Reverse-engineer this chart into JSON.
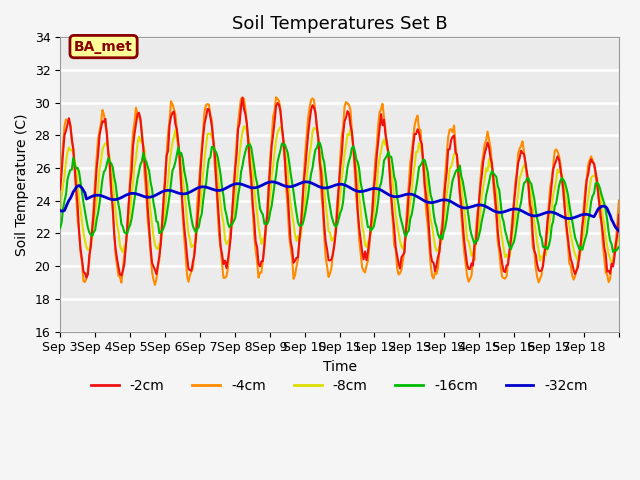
{
  "title": "Soil Temperatures Set B",
  "xlabel": "Time",
  "ylabel": "Soil Temperature (C)",
  "ylim": [
    16,
    34
  ],
  "xlim": [
    0,
    16
  ],
  "xtick_positions": [
    0,
    1,
    2,
    3,
    4,
    5,
    6,
    7,
    8,
    9,
    10,
    11,
    12,
    13,
    14,
    15,
    16
  ],
  "xtick_labels": [
    "Sep 3",
    "Sep 4",
    "Sep 5",
    "Sep 6",
    "Sep 7",
    "Sep 8",
    "Sep 9",
    "Sep 10",
    "Sep 11",
    "Sep 12",
    "Sep 13",
    "Sep 14",
    "Sep 15",
    "Sep 16",
    "Sep 17",
    "Sep 18",
    ""
  ],
  "annotation_text": "BA_met",
  "annotation_color": "#8B0000",
  "annotation_bg": "#FFFF99",
  "series_colors": {
    "-2cm": "#EE1111",
    "-4cm": "#FF8C00",
    "-8cm": "#DDDD00",
    "-16cm": "#00BB00",
    "-32cm": "#0000CC"
  },
  "series_linewidths": {
    "-2cm": 1.5,
    "-4cm": 1.5,
    "-8cm": 1.5,
    "-16cm": 1.5,
    "-32cm": 2.0
  },
  "fig_bg_color": "#F5F5F5",
  "plot_bg_color": "#EBEBEB",
  "grid_color": "#FFFFFF",
  "title_fontsize": 13,
  "label_fontsize": 10,
  "tick_fontsize": 9
}
